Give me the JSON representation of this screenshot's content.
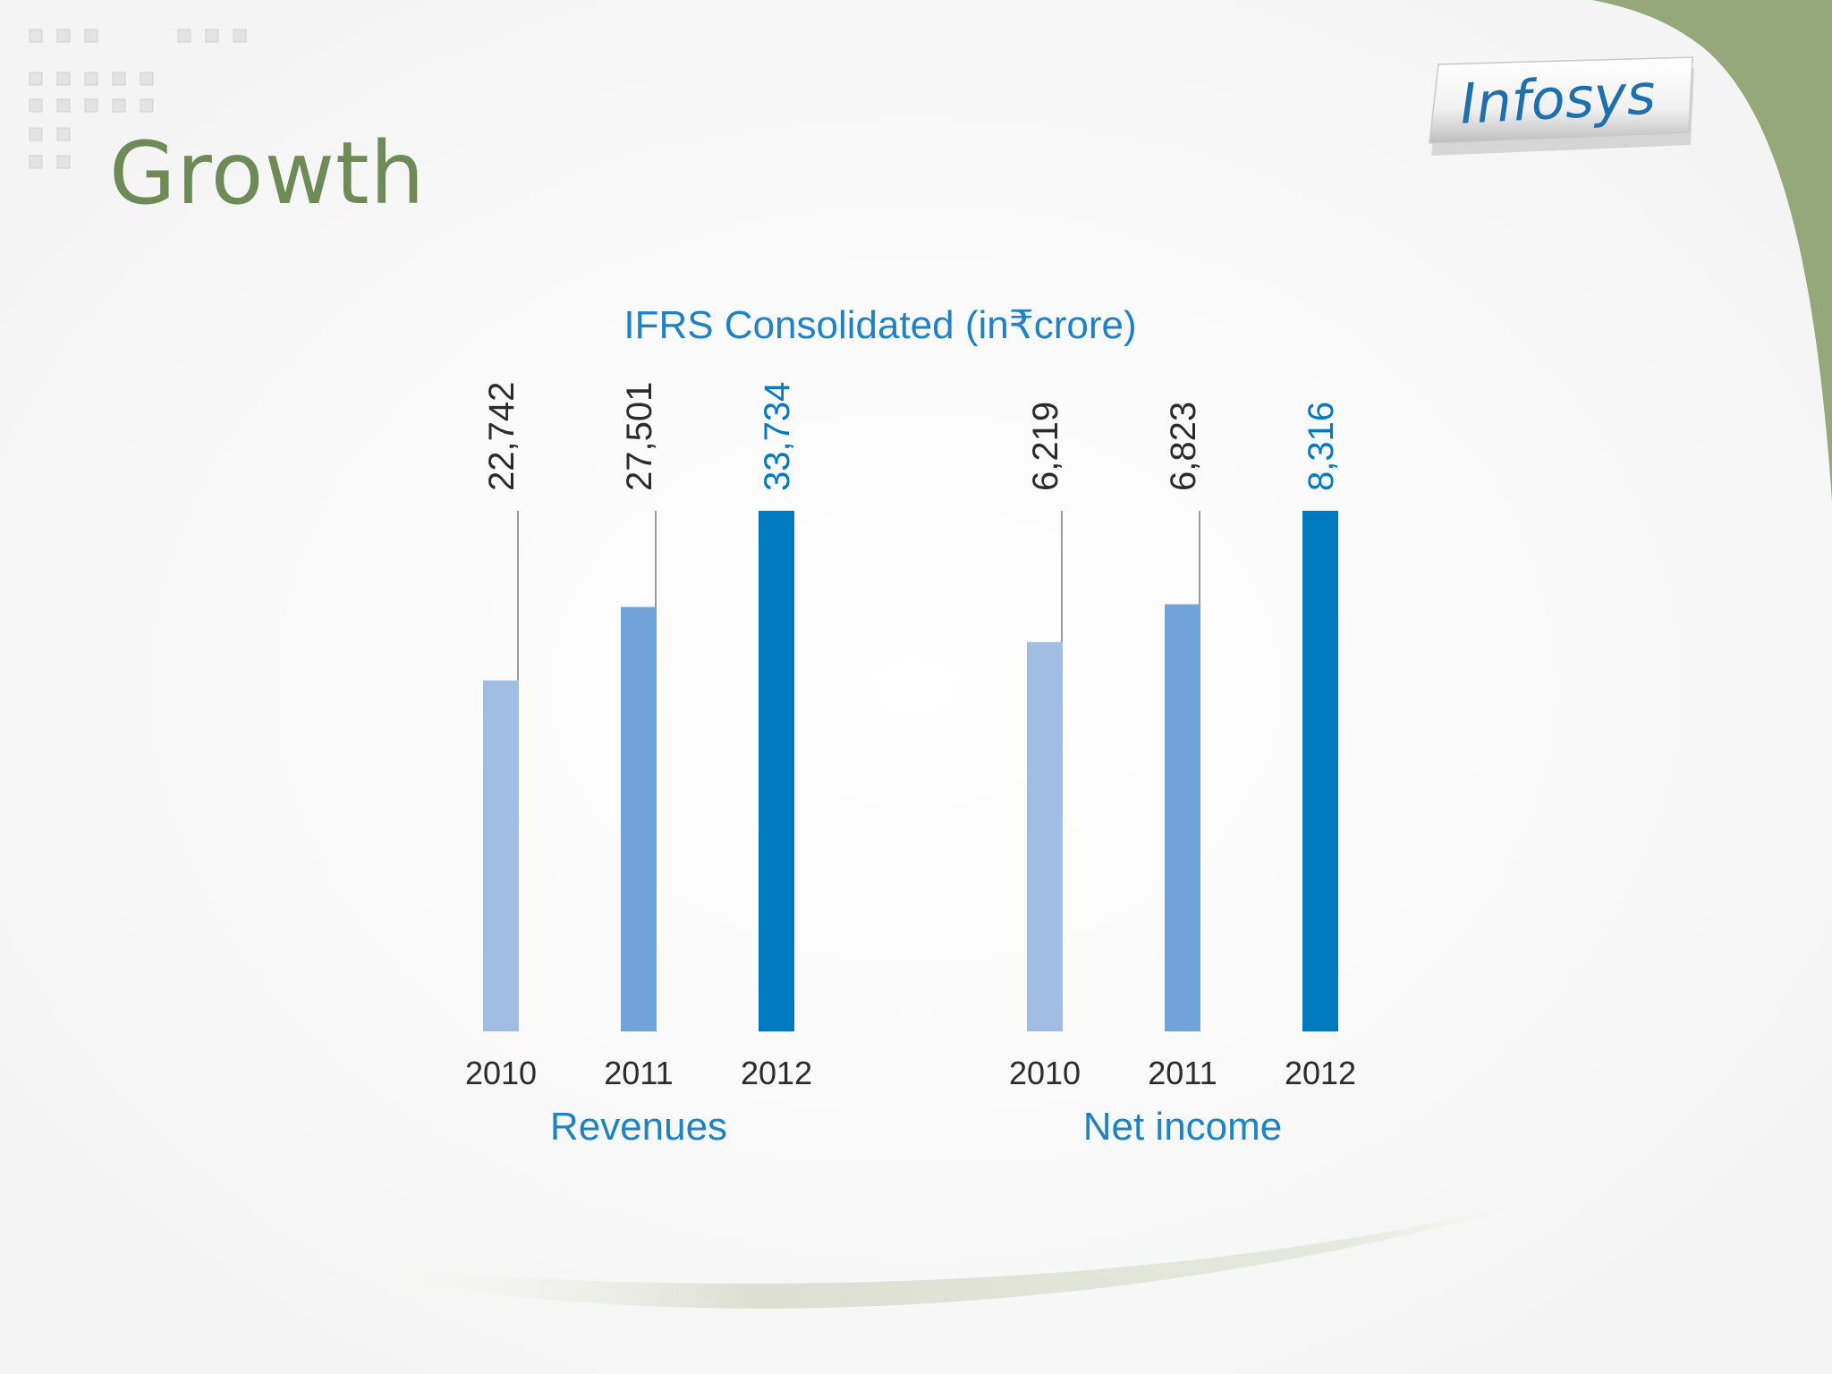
{
  "slide": {
    "title": "Growth",
    "logo_text": "Infosys",
    "colors": {
      "title": "#6e8a56",
      "corner_green": "#94a87a",
      "chart_text": "#1f82c4"
    }
  },
  "chart_data": {
    "type": "bar",
    "title": "IFRS Consolidated (in₹crore)",
    "categories": [
      "2010",
      "2011",
      "2012"
    ],
    "panels": [
      {
        "name": "Revenues",
        "values": [
          22742,
          27501,
          33734
        ],
        "labels": [
          "22,742",
          "27,501",
          "33,734"
        ]
      },
      {
        "name": "Net income",
        "values": [
          6219,
          6823,
          8316
        ],
        "labels": [
          "6,219",
          "6,823",
          "8,316"
        ]
      }
    ],
    "bar_colors": [
      "#a2bde4",
      "#72a3d8",
      "#0079c1"
    ],
    "label_colors": [
      "#2b2b2b",
      "#2b2b2b",
      "#0079c1"
    ],
    "grid": false
  }
}
